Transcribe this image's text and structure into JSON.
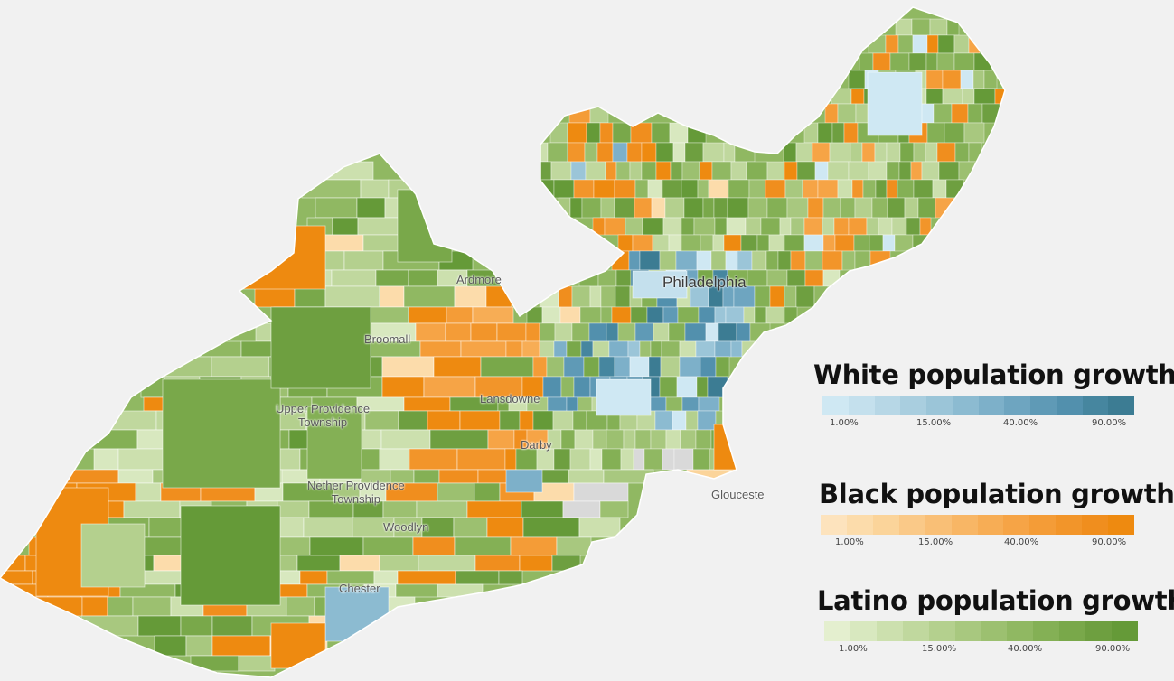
{
  "map": {
    "places": [
      {
        "name": "Philadelphia"
      },
      {
        "name": "Ardmore"
      },
      {
        "name": "Broomall"
      },
      {
        "name": "Upper Providence Township"
      },
      {
        "name": "Lansdowne"
      },
      {
        "name": "Darby"
      },
      {
        "name": "Nether Providence Township"
      },
      {
        "name": "Woodlyn"
      },
      {
        "name": "Chester"
      },
      {
        "name": "Gloucester"
      }
    ],
    "place_text": {
      "philadelphia": "Philadelphia",
      "ardmore": "Ardmore",
      "broomall": "Broomall",
      "upper_providence_1": "Upper Providence",
      "upper_providence_2": "Township",
      "lansdowne": "Lansdowne",
      "darby": "Darby",
      "nether_providence_1": "Nether Providence",
      "nether_providence_2": "Township",
      "woodlyn": "Woodlyn",
      "chester": "Chester",
      "gloucester": "Glouceste"
    },
    "colors": {
      "background": "#f1f1f1",
      "no_data": "#d9d9d9",
      "outline": "#ffffff"
    }
  },
  "legends": [
    {
      "title": "White population growth",
      "ticks": [
        "1.00%",
        "15.00%",
        "40.00%",
        "90.00%"
      ],
      "ramp": [
        "#cfe8f3",
        "#c4e0ed",
        "#b7d7e6",
        "#a9cedf",
        "#9bc5d8",
        "#8cbbd1",
        "#7db0c9",
        "#6ea5c0",
        "#5f9ab6",
        "#5290ad",
        "#46869f",
        "#3c7c93"
      ]
    },
    {
      "title": "Black population growth",
      "ticks": [
        "1.00%",
        "15.00%",
        "40.00%",
        "90.00%"
      ],
      "ramp": [
        "#fde3bd",
        "#fcdcab",
        "#fbd49a",
        "#fac988",
        "#f9bf76",
        "#f8b665",
        "#f7ad55",
        "#f6a446",
        "#f49c37",
        "#f2952a",
        "#f08e1e",
        "#ee8a10"
      ]
    },
    {
      "title": "Latino population growth",
      "ticks": [
        "1.00%",
        "15.00%",
        "40.00%",
        "90.00%"
      ],
      "ramp": [
        "#e4efcf",
        "#d8e8bf",
        "#cce0ae",
        "#c0d89e",
        "#b4d08e",
        "#a8c87f",
        "#9cc070",
        "#90b862",
        "#84b055",
        "#79a84a",
        "#6e9f40",
        "#659a38"
      ]
    }
  ]
}
